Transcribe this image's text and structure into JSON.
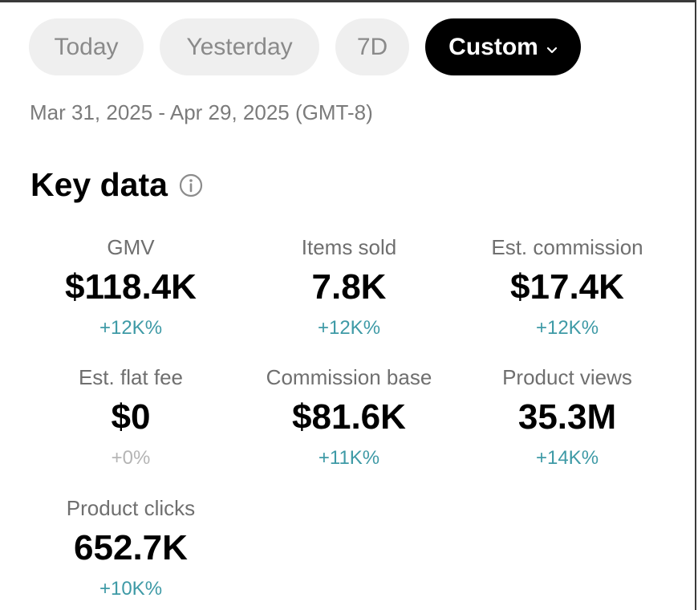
{
  "filters": {
    "tabs": [
      {
        "label": "Today",
        "active": false
      },
      {
        "label": "Yesterday",
        "active": false
      },
      {
        "label": "7D",
        "active": false
      },
      {
        "label": "Custom",
        "active": true
      }
    ],
    "date_range": "Mar 31, 2025 - Apr 29, 2025 (GMT-8)"
  },
  "key_data": {
    "title": "Key data",
    "metrics": [
      {
        "label": "GMV",
        "value": "$118.4K",
        "change": "+12K%"
      },
      {
        "label": "Items sold",
        "value": "7.8K",
        "change": "+12K%"
      },
      {
        "label": "Est. commission",
        "value": "$17.4K",
        "change": "+12K%"
      },
      {
        "label": "Est. flat fee",
        "value": "$0",
        "change": "+0%"
      },
      {
        "label": "Commission base",
        "value": "$81.6K",
        "change": "+11K%"
      },
      {
        "label": "Product views",
        "value": "35.3M",
        "change": "+14K%"
      },
      {
        "label": "Product clicks",
        "value": "652.7K",
        "change": "+10K%"
      }
    ]
  },
  "colors": {
    "positive_change": "#3e9aa6",
    "neutral_change": "#b5b5b5",
    "active_tab_bg": "#000000",
    "inactive_tab_bg": "#efefef"
  },
  "icons": {
    "info": "info-circle-icon",
    "dropdown": "chevron-down-icon"
  }
}
